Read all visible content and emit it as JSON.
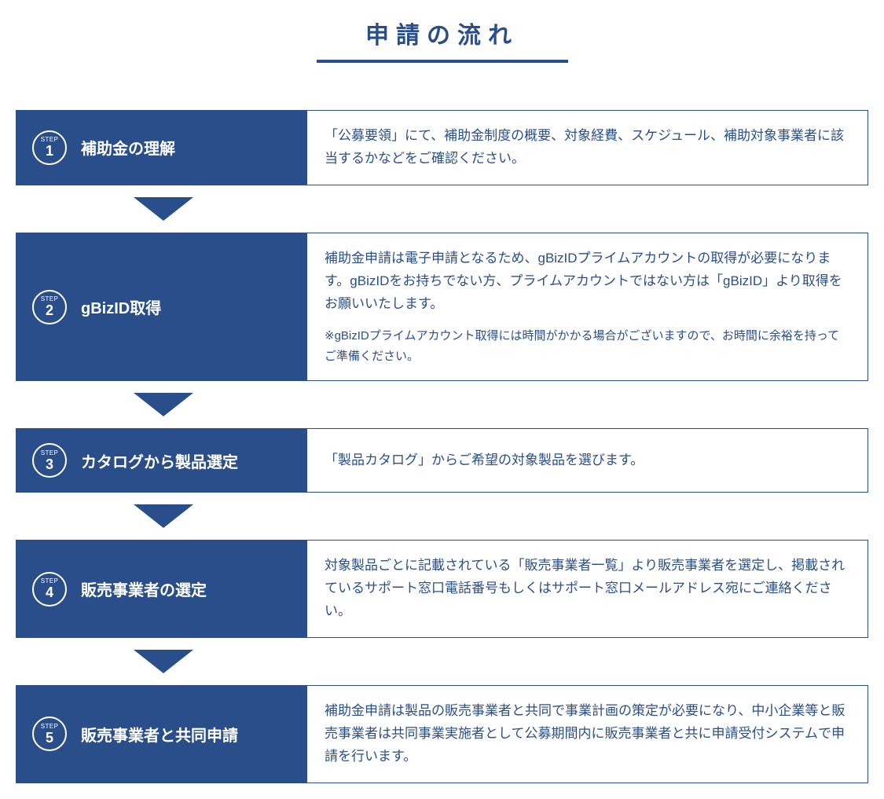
{
  "title": "申請の流れ",
  "title_color": "#2a4e8a",
  "title_fontsize": 30,
  "underline_color": "#2a4e8a",
  "step_label": "STEP",
  "left_bg": "#2a4e8a",
  "left_text_color": "#ffffff",
  "right_text_color": "#2a4e8a",
  "border_color": "#2a4e8a",
  "arrow_color": "#2a4e8a",
  "step_title_fontsize": 20,
  "desc_fontsize": 17,
  "note_fontsize": 15,
  "steps": [
    {
      "num": "1",
      "title": "補助金の理解",
      "desc": "「公募要領」にて、補助金制度の概要、対象経費、スケジュール、補助対象事業者に該当するかなどをご確認ください。",
      "note": ""
    },
    {
      "num": "2",
      "title": "gBizID取得",
      "desc": "補助金申請は電子申請となるため、gBizIDプライムアカウントの取得が必要になります。gBizIDをお持ちでない方、プライムアカウントではない方は「gBizID」より取得をお願いいたします。",
      "note": "※gBizIDプライムアカウント取得には時間がかかる場合がございますので、お時間に余裕を持ってご準備ください。"
    },
    {
      "num": "3",
      "title": "カタログから製品選定",
      "desc": "「製品カタログ」からご希望の対象製品を選びます。",
      "note": ""
    },
    {
      "num": "4",
      "title": "販売事業者の選定",
      "desc": "対象製品ごとに記載されている「販売事業者一覧」より販売事業者を選定し、掲載されているサポート窓口電話番号もしくはサポート窓口メールアドレス宛にご連絡ください。",
      "note": ""
    },
    {
      "num": "5",
      "title": "販売事業者と共同申請",
      "desc": "補助金申請は製品の販売事業者と共同で事業計画の策定が必要になり、中小企業等と販売事業者は共同事業実施者として公募期間内に販売事業者と共に申請受付システムで申請を行います。",
      "note": ""
    }
  ]
}
